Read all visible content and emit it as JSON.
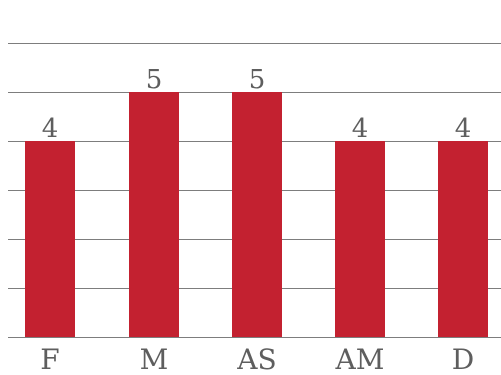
{
  "chart_data": {
    "type": "bar",
    "categories": [
      "F",
      "M",
      "AS",
      "AM",
      "D"
    ],
    "values": [
      4,
      5,
      5,
      4,
      4
    ],
    "title": "",
    "xlabel": "",
    "ylabel": "",
    "ylim": [
      0,
      6
    ],
    "grid": true,
    "data_labels": true,
    "bar_color": "#c32130",
    "grid_color": "#7d7d7d",
    "text_color": "#5e5e5e"
  }
}
